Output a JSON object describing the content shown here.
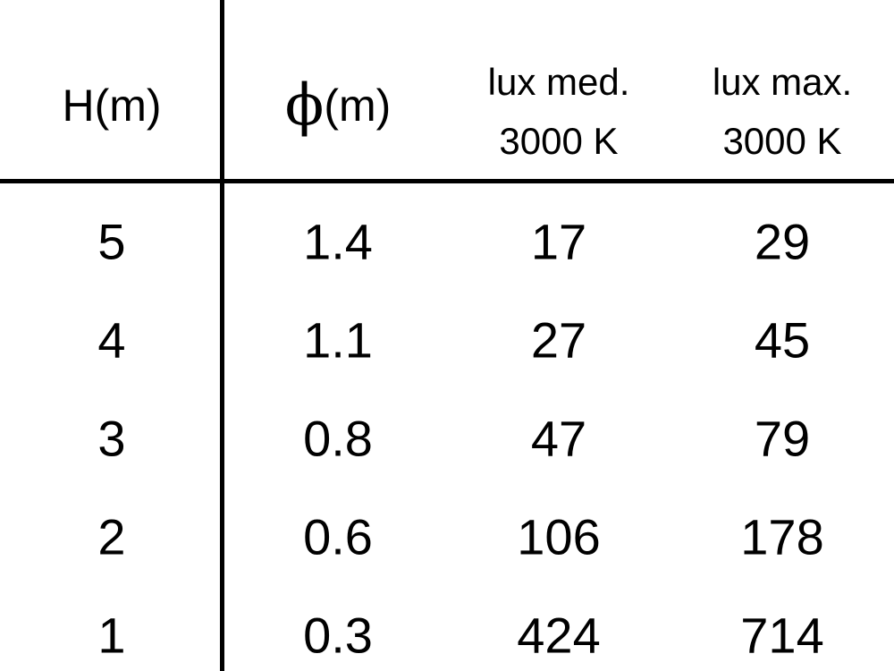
{
  "table": {
    "headers": [
      {
        "text": "H(m)"
      },
      {
        "symbol": "ϕ",
        "text": "(m)"
      },
      {
        "line1": "lux med.",
        "line2": "3000 K"
      },
      {
        "line1": "lux max.",
        "line2": "3000 K"
      }
    ],
    "rows": [
      [
        "5",
        "1.4",
        "17",
        "29"
      ],
      [
        "4",
        "1.1",
        "27",
        "45"
      ],
      [
        "3",
        "0.8",
        "47",
        "79"
      ],
      [
        "2",
        "0.6",
        "106",
        "178"
      ],
      [
        "1",
        "0.3",
        "424",
        "714"
      ]
    ]
  }
}
